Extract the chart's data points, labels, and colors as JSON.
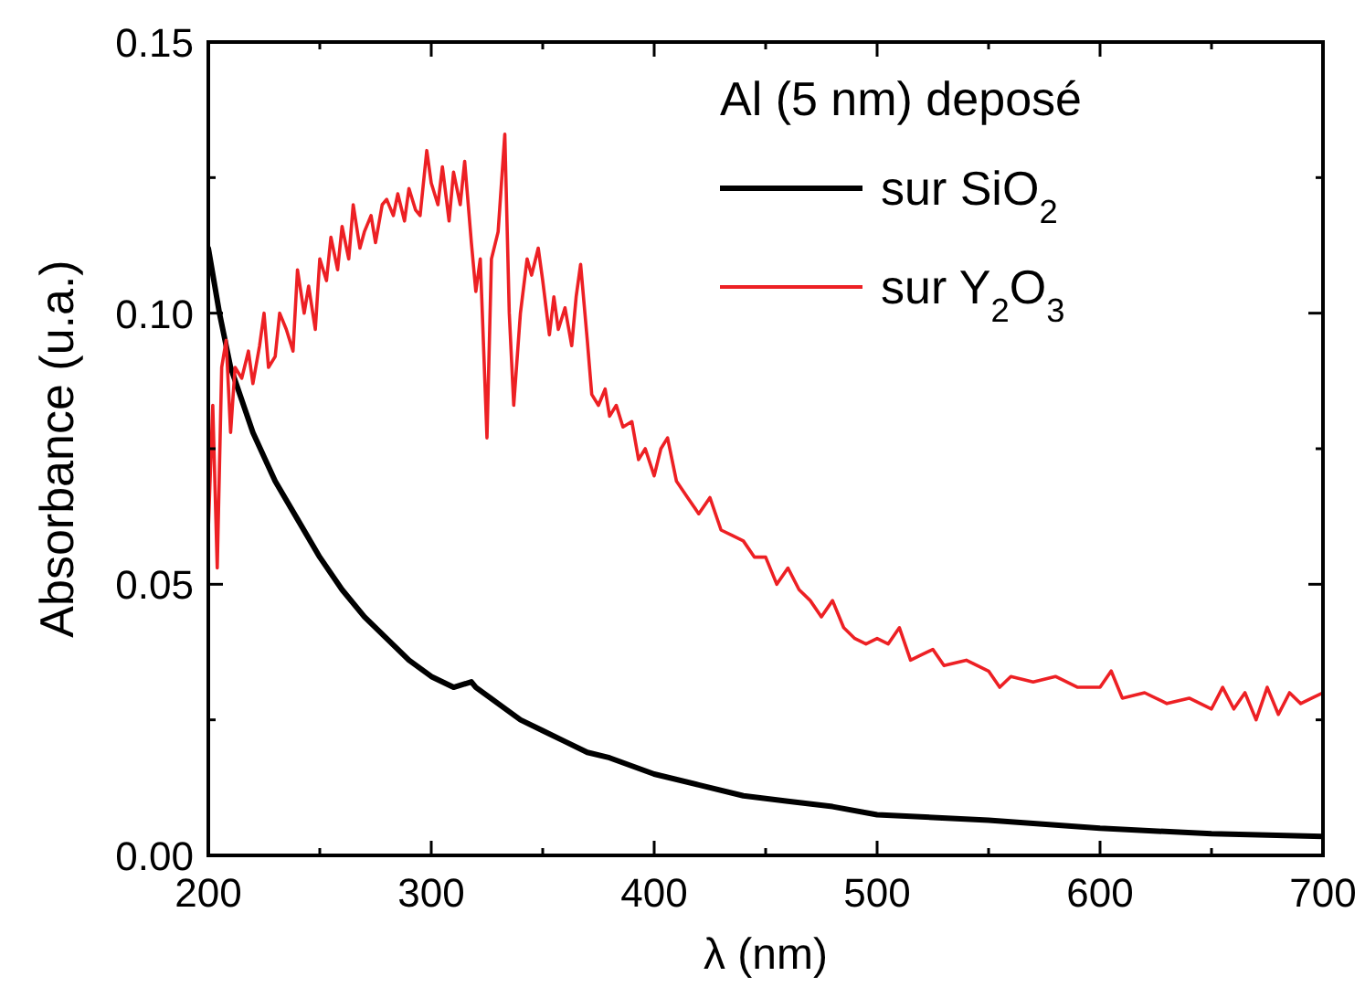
{
  "chart_data": {
    "type": "line",
    "xlabel": "λ (nm)",
    "ylabel": "Absorbance (u.a.)",
    "legend_title": "Al (5 nm) deposé",
    "legend": "top right",
    "grid": false,
    "line_style": "solid",
    "xlim": [
      200,
      700
    ],
    "ylim": [
      0,
      0.15
    ],
    "xticks": [
      200,
      {
        "value": 250,
        "label": null
      },
      300,
      {
        "value": 350,
        "label": null
      },
      400,
      {
        "value": 450,
        "label": null
      },
      500,
      {
        "value": 550,
        "label": null
      },
      600,
      {
        "value": 650,
        "label": null
      },
      700
    ],
    "yticks": [
      {
        "value": 0,
        "label": "0.00"
      },
      {
        "value": 0.025,
        "label": null
      },
      0.05,
      {
        "value": 0.075,
        "label": null
      },
      {
        "value": 0.1,
        "label": "0.10"
      },
      {
        "value": 0.125,
        "label": null
      },
      0.15
    ],
    "series": [
      {
        "name": "sur SiO$_{2}$",
        "color": "#000000",
        "x": [
          200,
          205,
          210,
          220,
          230,
          240,
          250,
          260,
          270,
          280,
          290,
          300,
          310,
          318,
          320,
          330,
          340,
          350,
          360,
          370,
          380,
          400,
          420,
          440,
          460,
          480,
          500,
          550,
          600,
          650,
          700
        ],
        "values": [
          0.112,
          0.1,
          0.09,
          0.078,
          0.069,
          0.062,
          0.055,
          0.049,
          0.044,
          0.04,
          0.036,
          0.033,
          0.031,
          0.032,
          0.031,
          0.028,
          0.025,
          0.023,
          0.021,
          0.019,
          0.018,
          0.015,
          0.013,
          0.011,
          0.01,
          0.009,
          0.0075,
          0.0065,
          0.005,
          0.004,
          0.0035
        ]
      },
      {
        "name": "sur Y$_{2}$O$_{3}$",
        "color": "#ed2024",
        "x": [
          200,
          202,
          204,
          206,
          208,
          210,
          212,
          215,
          218,
          220,
          223,
          225,
          227,
          230,
          232,
          235,
          238,
          240,
          243,
          245,
          248,
          250,
          253,
          255,
          258,
          260,
          263,
          265,
          268,
          270,
          273,
          275,
          278,
          280,
          283,
          285,
          288,
          290,
          293,
          295,
          298,
          300,
          303,
          305,
          308,
          310,
          313,
          315,
          318,
          320,
          322,
          325,
          327,
          330,
          333,
          335,
          337,
          340,
          343,
          345,
          348,
          350,
          353,
          355,
          357,
          360,
          363,
          365,
          367,
          370,
          372,
          375,
          378,
          380,
          383,
          386,
          390,
          393,
          396,
          400,
          403,
          406,
          410,
          415,
          420,
          425,
          430,
          435,
          440,
          445,
          450,
          455,
          460,
          465,
          470,
          475,
          480,
          485,
          490,
          495,
          500,
          505,
          510,
          515,
          520,
          525,
          530,
          540,
          550,
          555,
          560,
          570,
          580,
          590,
          600,
          605,
          610,
          620,
          630,
          640,
          650,
          655,
          660,
          665,
          670,
          675,
          680,
          685,
          690,
          695,
          700
        ],
        "values": [
          0.06,
          0.083,
          0.053,
          0.09,
          0.095,
          0.078,
          0.09,
          0.088,
          0.093,
          0.087,
          0.094,
          0.1,
          0.09,
          0.092,
          0.1,
          0.097,
          0.093,
          0.108,
          0.1,
          0.105,
          0.097,
          0.11,
          0.106,
          0.114,
          0.108,
          0.116,
          0.11,
          0.12,
          0.112,
          0.115,
          0.118,
          0.113,
          0.12,
          0.121,
          0.118,
          0.122,
          0.117,
          0.123,
          0.119,
          0.118,
          0.13,
          0.124,
          0.12,
          0.127,
          0.117,
          0.126,
          0.12,
          0.128,
          0.113,
          0.104,
          0.11,
          0.077,
          0.11,
          0.115,
          0.133,
          0.1,
          0.083,
          0.1,
          0.11,
          0.107,
          0.112,
          0.106,
          0.096,
          0.103,
          0.097,
          0.101,
          0.094,
          0.103,
          0.109,
          0.095,
          0.085,
          0.083,
          0.086,
          0.081,
          0.083,
          0.079,
          0.08,
          0.073,
          0.075,
          0.07,
          0.075,
          0.077,
          0.069,
          0.066,
          0.063,
          0.066,
          0.06,
          0.059,
          0.058,
          0.055,
          0.055,
          0.05,
          0.053,
          0.049,
          0.047,
          0.044,
          0.047,
          0.042,
          0.04,
          0.039,
          0.04,
          0.039,
          0.042,
          0.036,
          0.037,
          0.038,
          0.035,
          0.036,
          0.034,
          0.031,
          0.033,
          0.032,
          0.033,
          0.031,
          0.031,
          0.034,
          0.029,
          0.03,
          0.028,
          0.029,
          0.027,
          0.031,
          0.027,
          0.03,
          0.025,
          0.031,
          0.026,
          0.03,
          0.028,
          0.029,
          0.03
        ]
      }
    ]
  }
}
